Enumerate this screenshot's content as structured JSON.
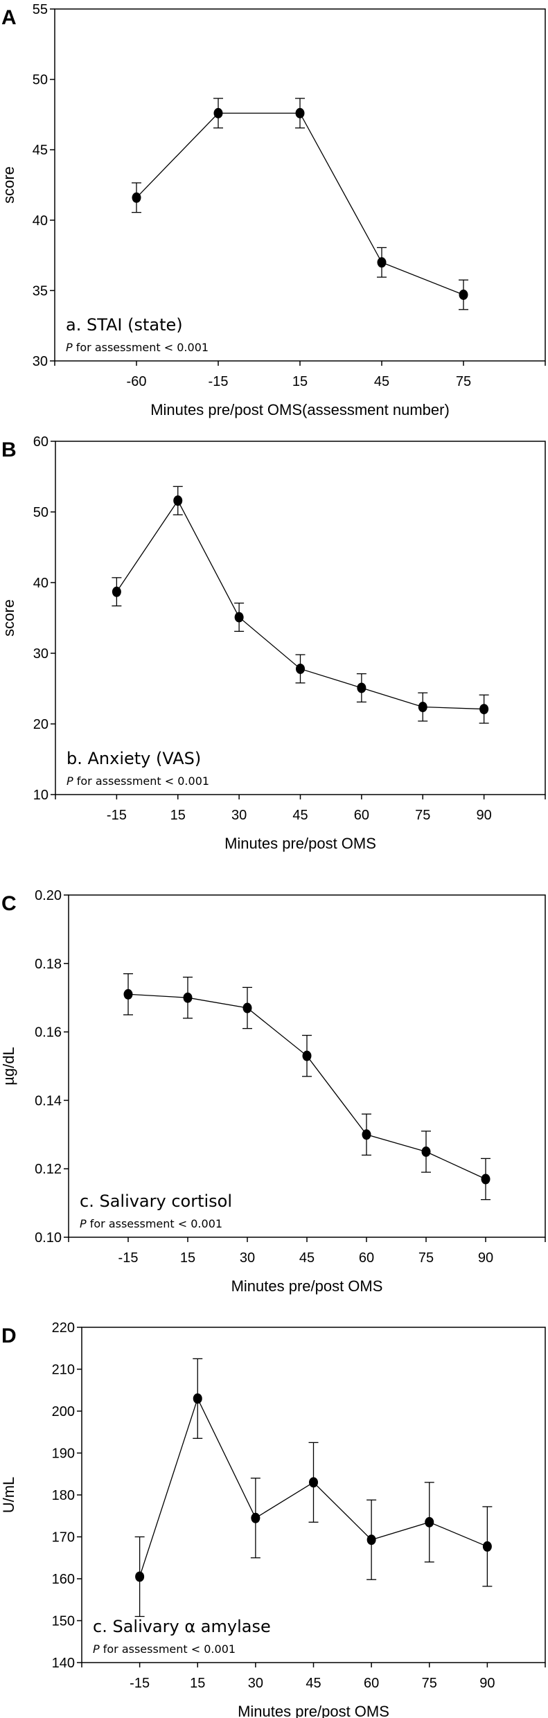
{
  "chart_data": [
    {
      "type": "line",
      "panel": "A",
      "title": "a. STAI (state)",
      "p_label_italic": "P",
      "p_label_rest": " for assessment < 0.001",
      "xlabel": "Minutes pre/post OMS(assessment number)",
      "ylabel": "score",
      "categories": [
        "-60",
        "-15",
        "15",
        "45",
        "75"
      ],
      "values": [
        41.6,
        47.6,
        47.6,
        37.0,
        34.7
      ],
      "errors": [
        1.05,
        1.05,
        1.05,
        1.05,
        1.05
      ],
      "ylim": [
        30,
        55
      ],
      "yticks": [
        30,
        35,
        40,
        45,
        50,
        55
      ],
      "ytick_decimals": 0,
      "grid": false
    },
    {
      "type": "line",
      "panel": "B",
      "title": "b. Anxiety (VAS)",
      "p_label_italic": "P",
      "p_label_rest": " for assessment < 0.001",
      "xlabel": "Minutes pre/post OMS",
      "ylabel": "score",
      "categories": [
        "-15",
        "15",
        "30",
        "45",
        "60",
        "75",
        "90"
      ],
      "values": [
        38.7,
        51.6,
        35.1,
        27.8,
        25.1,
        22.4,
        22.1
      ],
      "errors": [
        2.0,
        2.0,
        2.0,
        2.0,
        2.0,
        2.0,
        2.0
      ],
      "ylim": [
        10,
        60
      ],
      "yticks": [
        10,
        20,
        30,
        40,
        50,
        60
      ],
      "ytick_decimals": 0,
      "grid": false
    },
    {
      "type": "line",
      "panel": "C",
      "title": "c. Salivary cortisol",
      "p_label_italic": "P",
      "p_label_rest": " for assessment < 0.001",
      "xlabel": "Minutes pre/post OMS",
      "ylabel": "µg/dL",
      "categories": [
        "-15",
        "15",
        "30",
        "45",
        "60",
        "75",
        "90"
      ],
      "values": [
        0.171,
        0.17,
        0.167,
        0.153,
        0.13,
        0.125,
        0.117
      ],
      "errors": [
        0.006,
        0.006,
        0.006,
        0.006,
        0.006,
        0.006,
        0.006
      ],
      "ylim": [
        0.1,
        0.2
      ],
      "yticks": [
        0.1,
        0.12,
        0.14,
        0.16,
        0.18,
        0.2
      ],
      "ytick_decimals": 2,
      "grid": false
    },
    {
      "type": "line",
      "panel": "D",
      "title": "c. Salivary α amylase",
      "p_label_italic": "P",
      "p_label_rest": " for assessment < 0.001",
      "xlabel": "Minutes pre/post OMS",
      "ylabel": "U/mL",
      "categories": [
        "-15",
        "15",
        "30",
        "45",
        "60",
        "75",
        "90"
      ],
      "values": [
        160.5,
        203.0,
        174.5,
        183.0,
        169.3,
        173.5,
        167.7
      ],
      "errors": [
        9.5,
        9.5,
        9.5,
        9.5,
        9.5,
        9.5,
        9.5
      ],
      "ylim": [
        140,
        220
      ],
      "yticks": [
        140,
        150,
        160,
        170,
        180,
        190,
        200,
        210,
        220
      ],
      "ytick_decimals": 0,
      "grid": false
    }
  ]
}
